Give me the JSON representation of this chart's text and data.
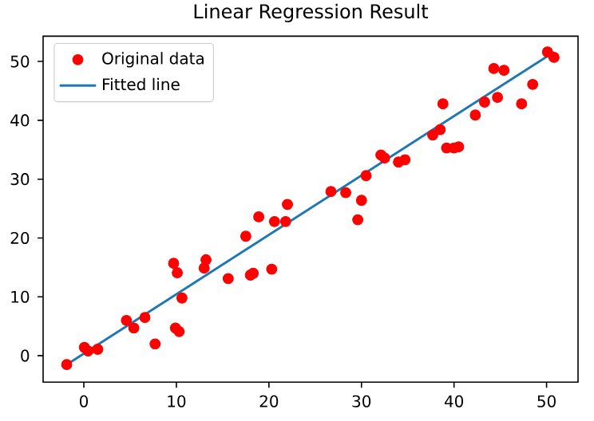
{
  "chart_data": {
    "type": "scatter",
    "title": "Linear Regression Result",
    "xlim": [
      -4.4,
      53.4
    ],
    "ylim": [
      -4.5,
      54.3
    ],
    "xticks": [
      0,
      10,
      20,
      30,
      40,
      50
    ],
    "yticks": [
      0,
      10,
      20,
      30,
      40,
      50
    ],
    "legend": "top left",
    "series": [
      {
        "name": "Original data",
        "marker": "circle",
        "color": "#ff0000",
        "x": [
          -1.85,
          0.06,
          0.46,
          1.5,
          4.6,
          5.4,
          6.6,
          7.7,
          9.7,
          10.1,
          9.9,
          10.3,
          10.6,
          13.2,
          13.0,
          15.6,
          17.5,
          18.0,
          18.3,
          18.9,
          20.3,
          20.6,
          21.8,
          22.0,
          26.7,
          28.3,
          30.0,
          29.6,
          30.5,
          32.1,
          32.5,
          34.0,
          34.7,
          37.7,
          38.5,
          38.8,
          39.2,
          40.0,
          40.5,
          42.3,
          43.3,
          44.3,
          44.7,
          45.4,
          47.3,
          48.5,
          50.1,
          50.8
        ],
        "values": [
          -1.5,
          1.4,
          0.8,
          1.1,
          6.0,
          4.7,
          6.5,
          2.0,
          15.7,
          14.1,
          4.7,
          4.1,
          9.8,
          16.3,
          14.9,
          13.1,
          20.3,
          13.7,
          14.0,
          23.6,
          14.7,
          22.8,
          22.8,
          25.7,
          27.9,
          27.7,
          26.4,
          23.1,
          30.6,
          34.1,
          33.6,
          32.9,
          33.3,
          37.5,
          38.4,
          42.8,
          35.3,
          35.3,
          35.5,
          40.9,
          43.1,
          48.8,
          43.9,
          48.5,
          42.8,
          46.1,
          51.6,
          50.7
        ]
      },
      {
        "name": "Fitted line",
        "type": "line",
        "color": "#1f77b4",
        "x": [
          -1.85,
          50.8
        ],
        "values": [
          -1.5,
          51.6
        ]
      }
    ]
  }
}
